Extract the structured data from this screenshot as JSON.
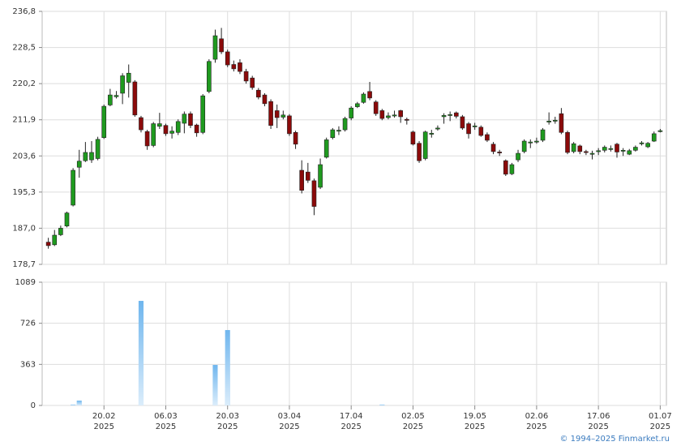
{
  "chart_data": [
    {
      "type": "candlestick",
      "open": [
        183.8,
        183.2,
        185.5,
        187.5,
        192.3,
        201.0,
        202.5,
        202.7,
        203.0,
        207.8,
        215.3,
        217.2,
        218.0,
        220.5,
        220.6,
        212.4,
        209.2,
        206.0,
        210.4,
        210.6,
        208.8,
        209.0,
        211.1,
        213.3,
        210.7,
        209.0,
        218.4,
        225.8,
        230.5,
        227.5,
        224.6,
        225.0,
        223.0,
        221.5,
        218.7,
        217.6,
        216.1,
        214.0,
        212.5,
        212.8,
        209.0,
        200.3,
        199.9,
        197.9,
        196.4,
        203.3,
        207.8,
        209.3,
        209.6,
        212.3,
        214.9,
        215.9,
        218.4,
        216.0,
        214.0,
        212.4,
        212.8,
        214.0,
        212.0,
        209.1,
        206.5,
        203.0,
        208.6,
        209.8,
        212.6,
        212.9,
        213.5,
        212.6,
        211.0,
        210.3,
        210.2,
        208.5,
        206.3,
        204.5,
        202.5,
        199.5,
        202.7,
        204.6,
        206.6,
        206.9,
        207.2,
        211.4,
        211.6,
        213.3,
        209.0,
        204.6,
        205.9,
        204.6,
        204.1,
        204.6,
        204.9,
        205.2,
        206.3,
        204.8,
        204.0,
        204.9,
        206.5,
        205.7,
        207.0,
        209.3
      ],
      "high": [
        184.8,
        186.6,
        187.6,
        190.8,
        200.8,
        205.0,
        206.8,
        207.0,
        208.0,
        215.4,
        219.0,
        218.5,
        222.6,
        224.6,
        221.0,
        212.8,
        209.6,
        211.4,
        213.5,
        211.0,
        210.4,
        212.0,
        213.8,
        213.8,
        211.0,
        217.8,
        225.8,
        232.6,
        233.0,
        228.0,
        225.5,
        225.8,
        223.6,
        222.0,
        219.2,
        218.0,
        216.6,
        215.4,
        214.0,
        213.2,
        209.4,
        202.6,
        202.0,
        198.4,
        203.0,
        207.8,
        210.0,
        210.4,
        212.6,
        215.0,
        216.0,
        218.2,
        220.6,
        216.4,
        214.4,
        213.6,
        214.0,
        214.2,
        212.4,
        209.4,
        207.0,
        209.4,
        209.6,
        210.6,
        213.4,
        213.8,
        213.8,
        213.0,
        211.4,
        211.2,
        210.6,
        209.0,
        206.8,
        205.0,
        202.8,
        202.0,
        205.0,
        207.4,
        207.4,
        207.8,
        210.0,
        213.6,
        212.6,
        214.6,
        209.4,
        206.8,
        206.2,
        205.0,
        204.8,
        205.4,
        206.0,
        206.0,
        206.6,
        205.4,
        205.2,
        206.0,
        207.0,
        206.8,
        209.2,
        209.8
      ],
      "low": [
        182.3,
        182.9,
        185.2,
        187.2,
        192.0,
        198.6,
        202.2,
        202.0,
        202.6,
        207.5,
        215.0,
        216.8,
        215.5,
        217.0,
        212.6,
        209.0,
        205.0,
        205.6,
        209.8,
        208.2,
        207.6,
        208.4,
        208.8,
        210.0,
        208.0,
        208.6,
        218.0,
        225.0,
        227.0,
        224.0,
        223.0,
        222.4,
        220.2,
        218.8,
        216.6,
        215.0,
        209.8,
        210.0,
        212.0,
        208.2,
        205.2,
        195.0,
        197.4,
        190.0,
        196.0,
        203.0,
        207.4,
        208.4,
        209.2,
        211.8,
        214.6,
        215.6,
        216.4,
        212.8,
        211.8,
        212.0,
        212.4,
        211.2,
        210.8,
        206.0,
        202.0,
        202.6,
        207.8,
        209.4,
        211.0,
        211.6,
        212.2,
        209.6,
        207.6,
        209.6,
        208.0,
        206.8,
        204.0,
        203.6,
        199.0,
        199.2,
        202.2,
        204.2,
        205.4,
        206.4,
        206.8,
        210.8,
        211.0,
        208.6,
        204.0,
        204.2,
        204.0,
        203.8,
        202.8,
        203.8,
        204.4,
        204.6,
        203.2,
        203.6,
        203.8,
        204.6,
        206.0,
        205.4,
        206.8,
        209.0
      ],
      "close": [
        183.0,
        185.4,
        187.0,
        190.5,
        200.3,
        202.4,
        204.4,
        204.4,
        207.4,
        215.0,
        217.6,
        217.5,
        222.0,
        222.6,
        213.0,
        209.6,
        205.9,
        211.0,
        211.0,
        208.7,
        209.3,
        211.5,
        213.2,
        210.6,
        208.9,
        217.4,
        225.3,
        231.2,
        227.5,
        224.5,
        223.6,
        223.0,
        220.8,
        219.3,
        217.1,
        215.6,
        210.6,
        212.4,
        213.0,
        208.7,
        206.3,
        195.7,
        198.0,
        192.0,
        201.6,
        207.3,
        209.6,
        209.5,
        212.2,
        214.6,
        215.6,
        217.8,
        216.9,
        213.3,
        212.2,
        212.8,
        213.0,
        212.6,
        211.8,
        206.3,
        202.5,
        209.1,
        208.8,
        210.0,
        212.9,
        213.1,
        212.7,
        210.0,
        208.7,
        210.5,
        208.3,
        207.2,
        204.6,
        204.3,
        199.4,
        201.6,
        204.2,
        207.0,
        206.8,
        207.0,
        209.6,
        211.6,
        211.8,
        209.0,
        204.4,
        206.4,
        204.6,
        204.5,
        204.2,
        204.8,
        205.6,
        205.3,
        204.5,
        204.9,
        204.8,
        205.6,
        206.6,
        206.5,
        208.7,
        209.4
      ],
      "up_color": "#1f9a1f",
      "down_color": "#8b0a0a",
      "ylim": [
        178.7,
        236.8
      ],
      "yticks": [
        {
          "value": 178.7,
          "label": "178,7"
        },
        {
          "value": 187.0,
          "label": "187,0"
        },
        {
          "value": 195.3,
          "label": "195,3"
        },
        {
          "value": 203.6,
          "label": "203,6"
        },
        {
          "value": 211.9,
          "label": "211,9"
        },
        {
          "value": 220.2,
          "label": "220,2"
        },
        {
          "value": 228.5,
          "label": "228,5"
        },
        {
          "value": 236.8,
          "label": "236,8"
        }
      ],
      "grid": true
    },
    {
      "type": "bar",
      "values": [
        0,
        0,
        0,
        0,
        8,
        43,
        0,
        0,
        0,
        0,
        0,
        0,
        0,
        0,
        0,
        924,
        0,
        0,
        0,
        0,
        0,
        0,
        0,
        0,
        0,
        0,
        0,
        358,
        0,
        666,
        0,
        0,
        0,
        0,
        0,
        0,
        0,
        0,
        0,
        0,
        0,
        0,
        0,
        0,
        0,
        0,
        0,
        0,
        0,
        0,
        0,
        0,
        0,
        0,
        8,
        0,
        0,
        0,
        0,
        0,
        0,
        0,
        0,
        0,
        0,
        0,
        0,
        0,
        0,
        0,
        0,
        0,
        0,
        0,
        0,
        0,
        0,
        0,
        0,
        0,
        0,
        0,
        0,
        0,
        0,
        0,
        0,
        0,
        0,
        0,
        0,
        0,
        0,
        0,
        0,
        0,
        0,
        0,
        0,
        0
      ],
      "color": "#6fb6ee",
      "ylim": [
        0,
        1089
      ],
      "yticks": [
        0,
        363,
        726,
        1089
      ],
      "xlim": [
        -1,
        100
      ],
      "xticks": [
        {
          "value": 9,
          "label": "20.02",
          "year": "2025"
        },
        {
          "value": 19,
          "label": "06.03",
          "year": "2025"
        },
        {
          "value": 29,
          "label": "20.03",
          "year": "2025"
        },
        {
          "value": 39,
          "label": "03.04",
          "year": "2025"
        },
        {
          "value": 49,
          "label": "17.04",
          "year": "2025"
        },
        {
          "value": 59,
          "label": "02.05",
          "year": "2025"
        },
        {
          "value": 69,
          "label": "19.05",
          "year": "2025"
        },
        {
          "value": 79,
          "label": "02.06",
          "year": "2025"
        },
        {
          "value": 89,
          "label": "17.06",
          "year": "2025"
        },
        {
          "value": 99,
          "label": "01.07",
          "year": "2025"
        }
      ],
      "grid": true,
      "source": "© 1994–2025 Finmarket.ru"
    }
  ]
}
